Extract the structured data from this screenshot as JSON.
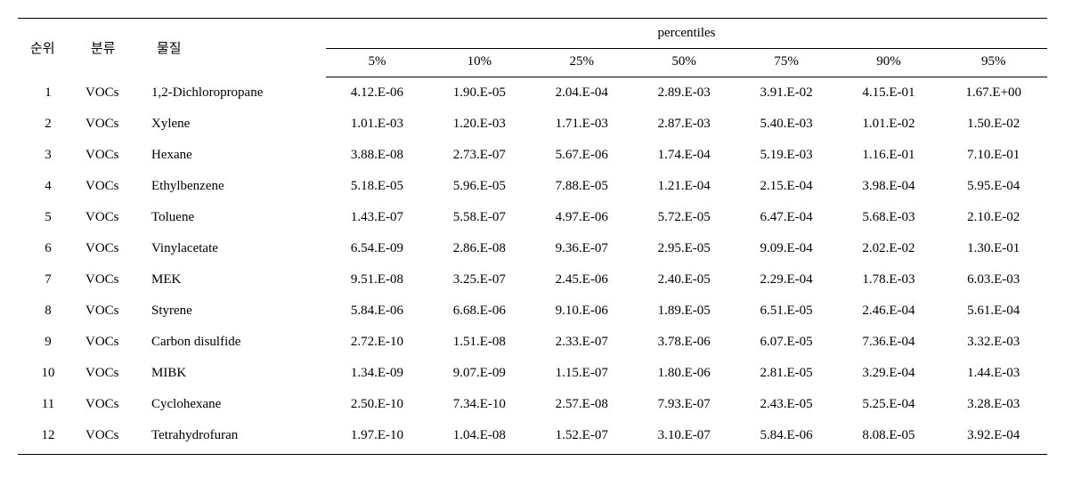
{
  "table": {
    "type": "table",
    "headers": {
      "rank": "순위",
      "category": "분류",
      "substance": "물질",
      "percentiles_group": "percentiles",
      "percentiles": [
        "5%",
        "10%",
        "25%",
        "50%",
        "75%",
        "90%",
        "95%"
      ]
    },
    "rows": [
      {
        "rank": "1",
        "category": "VOCs",
        "substance": "1,2-Dichloropropane",
        "vals": [
          "4.12.E-06",
          "1.90.E-05",
          "2.04.E-04",
          "2.89.E-03",
          "3.91.E-02",
          "4.15.E-01",
          "1.67.E+00"
        ]
      },
      {
        "rank": "2",
        "category": "VOCs",
        "substance": "Xylene",
        "vals": [
          "1.01.E-03",
          "1.20.E-03",
          "1.71.E-03",
          "2.87.E-03",
          "5.40.E-03",
          "1.01.E-02",
          "1.50.E-02"
        ]
      },
      {
        "rank": "3",
        "category": "VOCs",
        "substance": "Hexane",
        "vals": [
          "3.88.E-08",
          "2.73.E-07",
          "5.67.E-06",
          "1.74.E-04",
          "5.19.E-03",
          "1.16.E-01",
          "7.10.E-01"
        ]
      },
      {
        "rank": "4",
        "category": "VOCs",
        "substance": "Ethylbenzene",
        "vals": [
          "5.18.E-05",
          "5.96.E-05",
          "7.88.E-05",
          "1.21.E-04",
          "2.15.E-04",
          "3.98.E-04",
          "5.95.E-04"
        ]
      },
      {
        "rank": "5",
        "category": "VOCs",
        "substance": "Toluene",
        "vals": [
          "1.43.E-07",
          "5.58.E-07",
          "4.97.E-06",
          "5.72.E-05",
          "6.47.E-04",
          "5.68.E-03",
          "2.10.E-02"
        ]
      },
      {
        "rank": "6",
        "category": "VOCs",
        "substance": "Vinylacetate",
        "vals": [
          "6.54.E-09",
          "2.86.E-08",
          "9.36.E-07",
          "2.95.E-05",
          "9.09.E-04",
          "2.02.E-02",
          "1.30.E-01"
        ]
      },
      {
        "rank": "7",
        "category": "VOCs",
        "substance": "MEK",
        "vals": [
          "9.51.E-08",
          "3.25.E-07",
          "2.45.E-06",
          "2.40.E-05",
          "2.29.E-04",
          "1.78.E-03",
          "6.03.E-03"
        ]
      },
      {
        "rank": "8",
        "category": "VOCs",
        "substance": "Styrene",
        "vals": [
          "5.84.E-06",
          "6.68.E-06",
          "9.10.E-06",
          "1.89.E-05",
          "6.51.E-05",
          "2.46.E-04",
          "5.61.E-04"
        ]
      },
      {
        "rank": "9",
        "category": "VOCs",
        "substance": "Carbon disulfide",
        "vals": [
          "2.72.E-10",
          "1.51.E-08",
          "2.33.E-07",
          "3.78.E-06",
          "6.07.E-05",
          "7.36.E-04",
          "3.32.E-03"
        ]
      },
      {
        "rank": "10",
        "category": "VOCs",
        "substance": "MIBK",
        "vals": [
          "1.34.E-09",
          "9.07.E-09",
          "1.15.E-07",
          "1.80.E-06",
          "2.81.E-05",
          "3.29.E-04",
          "1.44.E-03"
        ]
      },
      {
        "rank": "11",
        "category": "VOCs",
        "substance": "Cyclohexane",
        "vals": [
          "2.50.E-10",
          "7.34.E-10",
          "2.57.E-08",
          "7.93.E-07",
          "2.43.E-05",
          "5.25.E-04",
          "3.28.E-03"
        ]
      },
      {
        "rank": "12",
        "category": "VOCs",
        "substance": "Tetrahydrofuran",
        "vals": [
          "1.97.E-10",
          "1.04.E-08",
          "1.52.E-07",
          "3.10.E-07",
          "5.84.E-06",
          "8.08.E-05",
          "3.92.E-04"
        ]
      }
    ],
    "colors": {
      "text": "#000000",
      "background": "#ffffff",
      "border": "#000000"
    },
    "fonts": {
      "family": "Times New Roman, serif",
      "header_size_pt": 15,
      "body_size_pt": 15
    }
  }
}
